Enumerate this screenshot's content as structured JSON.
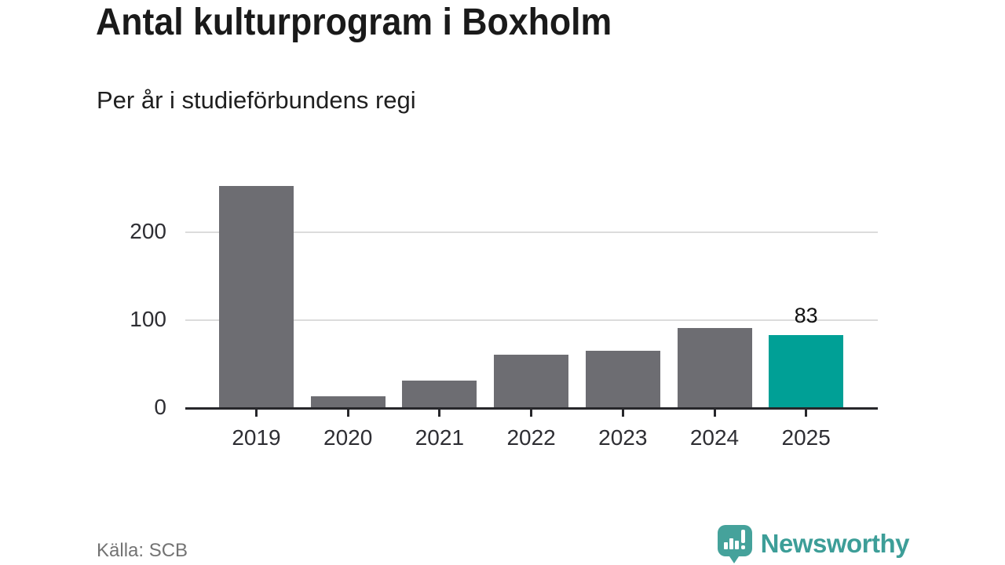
{
  "chart_data": {
    "type": "bar",
    "title": "Antal kulturprogram i Boxholm",
    "subtitle": "Per år i studieförbundens regi",
    "categories": [
      "2019",
      "2020",
      "2021",
      "2022",
      "2023",
      "2024",
      "2025"
    ],
    "values": [
      253,
      13,
      31,
      61,
      65,
      91,
      83
    ],
    "bar_labels": [
      "",
      "",
      "",
      "",
      "",
      "",
      "83"
    ],
    "highlighted_category": "2025",
    "yticks": [
      0,
      100,
      200
    ],
    "ylim": [
      0,
      260
    ],
    "grid": "horizontal-only",
    "legend": "none",
    "bar_color": "#6d6d72",
    "highlight_color": "#00a096",
    "gridline_color": "#dcdcdc",
    "axis_color": "#27272b"
  },
  "footer": {
    "source": "Källa: SCB",
    "brand": "Newsworthy",
    "brand_color": "#3d9e98",
    "brand_icon": "newsworthy-speech-bubble-chart-icon"
  }
}
